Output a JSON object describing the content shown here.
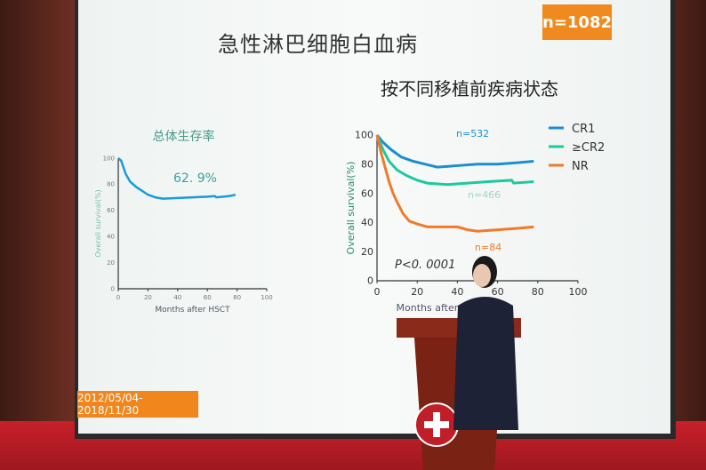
{
  "slide": {
    "title": "急性淋巴细胞白血病",
    "badge": "n=1082",
    "subtitle": "按不同移植前疾病状态",
    "date_range": "2012/05/04-2018/11/30"
  },
  "colors": {
    "cr1": "#1a8fd0",
    "cr2": "#1ec8a0",
    "nr": "#f07a2a",
    "badge": "#f08a1e",
    "left_curve": "#1a9ad6"
  },
  "chart_data": [
    {
      "type": "line",
      "title": "总体生存率",
      "xlabel": "Months after HSCT",
      "ylabel": "Overall survival(%)",
      "xlim": [
        0,
        100
      ],
      "ylim": [
        0,
        100
      ],
      "xticks": [
        "0",
        "20",
        "40",
        "60",
        "80",
        "100"
      ],
      "yticks": [
        "0",
        "20",
        "40",
        "60",
        "80",
        "100"
      ],
      "annotation": "62. 9%",
      "series": [
        {
          "x": [
            0,
            2,
            5,
            8,
            12,
            16,
            20,
            25,
            30,
            40,
            50,
            60,
            65,
            66,
            75,
            79
          ],
          "y": [
            100,
            98,
            88,
            82,
            78,
            75,
            72,
            70,
            69,
            69.5,
            70,
            70.5,
            71,
            70,
            71,
            72
          ]
        }
      ]
    },
    {
      "type": "line",
      "xlabel": "Months after HSCT",
      "ylabel": "Overall survival(%)",
      "xlim": [
        0,
        100
      ],
      "ylim": [
        0,
        100
      ],
      "xticks": [
        "0",
        "20",
        "40",
        "60",
        "80",
        "100"
      ],
      "yticks": [
        "0",
        "20",
        "40",
        "60",
        "80",
        "100"
      ],
      "annotation": "P<0. 0001",
      "legend_position": "top-right",
      "series": [
        {
          "name": "CR1",
          "label": "n=532",
          "x": [
            0,
            3,
            7,
            12,
            18,
            24,
            30,
            40,
            50,
            60,
            70,
            78
          ],
          "y": [
            100,
            95,
            90,
            85,
            82,
            80,
            78,
            79,
            80,
            80,
            81,
            82
          ]
        },
        {
          "name": "≥CR2",
          "label": "n=466",
          "x": [
            0,
            3,
            6,
            10,
            15,
            20,
            25,
            35,
            45,
            55,
            67,
            68,
            78
          ],
          "y": [
            100,
            90,
            82,
            76,
            72,
            69,
            67,
            66,
            67,
            68,
            69,
            67,
            68
          ]
        },
        {
          "name": "NR",
          "label": "n=84",
          "x": [
            0,
            2,
            4,
            6,
            8,
            10,
            13,
            16,
            20,
            25,
            40,
            45,
            50,
            60,
            70,
            78
          ],
          "y": [
            100,
            88,
            78,
            68,
            60,
            54,
            46,
            41,
            39,
            37,
            37,
            35,
            34,
            35,
            36,
            37
          ]
        }
      ]
    }
  ]
}
